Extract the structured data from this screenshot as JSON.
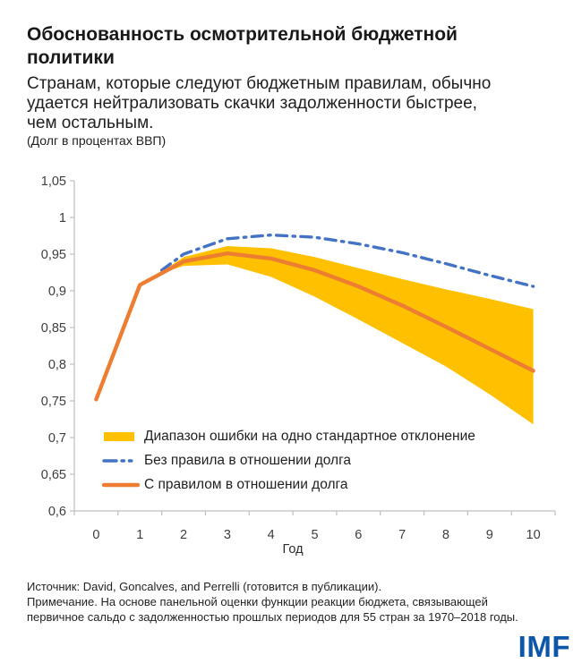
{
  "header": {
    "title_lines": [
      "Обоснованность осмотрительной бюджетной",
      "политики"
    ],
    "subtitle_lines": [
      "Странам, которые следуют бюджетным правилам, обычно",
      "удается нейтрализовать скачки задолженности быстрее,",
      "чем остальным."
    ],
    "unit_note": "(Долг в процентах ВВП)"
  },
  "chart_data": {
    "type": "line",
    "title": "",
    "xlabel": "Год",
    "ylabel": "",
    "xlim": [
      -0.5,
      10.5
    ],
    "ylim": [
      0.6,
      1.05
    ],
    "grid": false,
    "legend_position": "inside-bottom-left",
    "axis_color": "#bfbfbf",
    "tick_label_color": "#3d3d3d",
    "x_tick_labels": [
      "0",
      "1",
      "2",
      "3",
      "4",
      "5",
      "6",
      "7",
      "8",
      "9",
      "10"
    ],
    "y_ticks": [
      {
        "value": 0.6,
        "label": "0,6"
      },
      {
        "value": 0.65,
        "label": "0,65"
      },
      {
        "value": 0.7,
        "label": "0,7"
      },
      {
        "value": 0.75,
        "label": "0,75"
      },
      {
        "value": 0.8,
        "label": "0,8"
      },
      {
        "value": 0.85,
        "label": "0,85"
      },
      {
        "value": 0.9,
        "label": "0,9"
      },
      {
        "value": 0.95,
        "label": "0,95"
      },
      {
        "value": 1,
        "label": "1"
      },
      {
        "value": 1.05,
        "label": "1,05"
      }
    ],
    "series": [
      {
        "name": "Диапазон ошибки на одно стандартное отклонение",
        "type": "band",
        "color": "#ffc000",
        "x": [
          1.5,
          2,
          3,
          4,
          5,
          6,
          7,
          8,
          9,
          10
        ],
        "upper": [
          0.926,
          0.946,
          0.961,
          0.958,
          0.946,
          0.931,
          0.916,
          0.902,
          0.889,
          0.875
        ],
        "lower": [
          0.924,
          0.934,
          0.936,
          0.919,
          0.892,
          0.861,
          0.829,
          0.797,
          0.759,
          0.718
        ]
      },
      {
        "name": "Без правила в отношении долга",
        "type": "line",
        "line_style": "dash-dot",
        "color": "#4472c4",
        "x": [
          1.5,
          2,
          3,
          4,
          5,
          6,
          7,
          8,
          9,
          10
        ],
        "y": [
          0.928,
          0.95,
          0.971,
          0.976,
          0.973,
          0.964,
          0.952,
          0.937,
          0.921,
          0.906
        ]
      },
      {
        "name": "С правилом в отношении долга",
        "type": "line",
        "line_style": "solid",
        "color": "#ed7d31",
        "x": [
          0,
          1,
          2,
          3,
          4,
          5,
          6,
          7,
          8,
          9,
          10
        ],
        "y": [
          0.752,
          0.908,
          0.94,
          0.951,
          0.944,
          0.928,
          0.906,
          0.88,
          0.851,
          0.821,
          0.791
        ]
      }
    ]
  },
  "footer": {
    "source": "Источник: David, Goncalves, and Perrelli (готовится в публикации).",
    "note_lines": [
      "Примечание. На основе панельной оценки функции реакции бюджета, связывающей",
      "первичное сальдо с задолженностью прошлых периодов для 55 стран за 1970–2018 годы."
    ]
  },
  "branding": {
    "logo_text": "IMF",
    "logo_color": "#0e57a8"
  }
}
